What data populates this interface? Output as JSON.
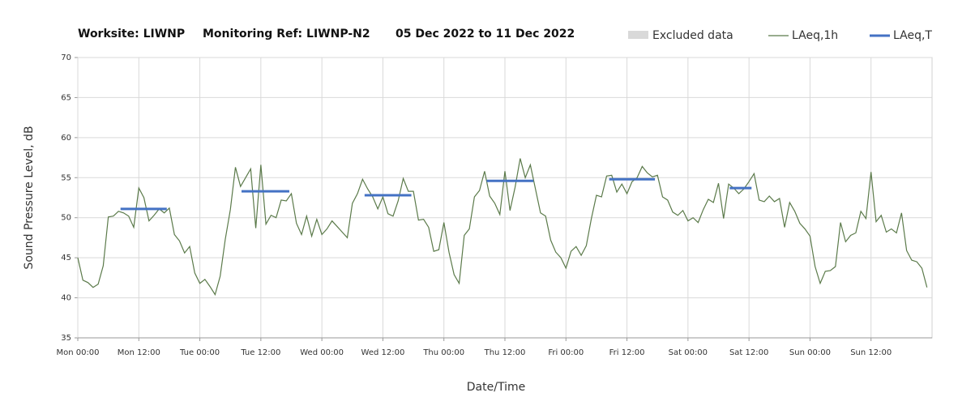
{
  "chart_data": {
    "type": "line",
    "title_parts": [
      "Worksite: LIWNP",
      "Monitoring Ref: LIWNP-N2",
      "05 Dec 2022 to 11 Dec 2022"
    ],
    "xlabel": "Date/Time",
    "ylabel": "Sound Pressure Level, dB",
    "excluded_data": {
      "name": "Excluded data",
      "color": "#d9d9d9"
    },
    "xlim": [
      0,
      168
    ],
    "ylim": [
      35,
      70
    ],
    "grid": true,
    "xticks": [
      {
        "value": 0,
        "label": "Mon 00:00"
      },
      {
        "value": 12,
        "label": "Mon 12:00"
      },
      {
        "value": 24,
        "label": "Tue 00:00"
      },
      {
        "value": 36,
        "label": "Tue 12:00"
      },
      {
        "value": 48,
        "label": "Wed 00:00"
      },
      {
        "value": 60,
        "label": "Wed 12:00"
      },
      {
        "value": 72,
        "label": "Thu 00:00"
      },
      {
        "value": 84,
        "label": "Thu 12:00"
      },
      {
        "value": 96,
        "label": "Fri 00:00"
      },
      {
        "value": 108,
        "label": "Fri 12:00"
      },
      {
        "value": 120,
        "label": "Sat 00:00"
      },
      {
        "value": 132,
        "label": "Sat 12:00"
      },
      {
        "value": 144,
        "label": "Sun 00:00"
      },
      {
        "value": 156,
        "label": "Sun 12:00"
      }
    ],
    "yticks": [
      35,
      40,
      45,
      50,
      55,
      60,
      65,
      70
    ],
    "x": [
      0,
      1,
      2,
      3,
      4,
      5,
      6,
      7,
      8,
      9,
      10,
      11,
      12,
      13,
      14,
      15,
      16,
      17,
      18,
      19,
      20,
      21,
      22,
      23,
      24,
      25,
      26,
      27,
      28,
      29,
      30,
      31,
      32,
      33,
      34,
      35,
      36,
      37,
      38,
      39,
      40,
      41,
      42,
      43,
      44,
      45,
      46,
      47,
      48,
      49,
      50,
      51,
      52,
      53,
      54,
      55,
      56,
      57,
      58,
      59,
      60,
      61,
      62,
      63,
      64,
      65,
      66,
      67,
      68,
      69,
      70,
      71,
      72,
      73,
      74,
      75,
      76,
      77,
      78,
      79,
      80,
      81,
      82,
      83,
      84,
      85,
      86,
      87,
      88,
      89,
      90,
      91,
      92,
      93,
      94,
      95,
      96,
      97,
      98,
      99,
      100,
      101,
      102,
      103,
      104,
      105,
      106,
      107,
      108,
      109,
      110,
      111,
      112,
      113,
      114,
      115,
      116,
      117,
      118,
      119,
      120,
      121,
      122,
      123,
      124,
      125,
      126,
      127,
      128,
      129,
      130,
      131,
      132,
      133,
      134,
      135,
      136,
      137,
      138,
      139,
      140,
      141,
      142,
      143,
      144,
      145,
      146,
      147,
      148,
      149,
      150,
      151,
      152,
      153,
      154,
      155,
      156,
      157,
      158,
      159,
      160,
      161,
      162,
      163,
      164,
      165,
      166,
      167
    ],
    "series": [
      {
        "name": "LAeq,1h",
        "color": "#5b7a4a",
        "values": [
          45,
          42.2,
          41.9,
          41.3,
          41.7,
          44,
          50.1,
          50.2,
          50.8,
          50.6,
          50.2,
          48.8,
          53.7,
          52.5,
          49.6,
          50.3,
          51.1,
          50.6,
          51.2,
          47.9,
          47.1,
          45.6,
          46.4,
          43.1,
          41.8,
          42.3,
          41.4,
          40.4,
          42.7,
          47.3,
          51,
          56.3,
          53.9,
          55,
          56.1,
          48.7,
          56.6,
          49.2,
          50.3,
          50,
          52.2,
          52.1,
          53,
          49.3,
          47.9,
          50.2,
          47.7,
          49.8,
          47.9,
          48.6,
          49.6,
          48.9,
          48.2,
          47.5,
          51.8,
          53,
          54.8,
          53.6,
          52.6,
          51.1,
          52.6,
          50.5,
          50.2,
          52.1,
          54.9,
          53.3,
          53.3,
          49.7,
          49.8,
          48.8,
          45.8,
          46,
          49.4,
          45.7,
          42.9,
          41.8,
          47.8,
          48.6,
          52.6,
          53.4,
          55.8,
          52.7,
          51.8,
          50.4,
          55.8,
          50.9,
          53.8,
          57.4,
          55,
          56.6,
          53.6,
          50.6,
          50.2,
          47.2,
          45.7,
          45,
          43.7,
          45.8,
          46.4,
          45.3,
          46.5,
          49.9,
          52.8,
          52.6,
          55.2,
          55.3,
          53.2,
          54.2,
          53,
          54.5,
          55,
          56.4,
          55.6,
          55.1,
          55.3,
          52.6,
          52.2,
          50.7,
          50.3,
          50.9,
          49.6,
          50,
          49.4,
          51,
          52.3,
          51.9,
          54.3,
          49.9,
          54.2,
          53.7,
          53,
          53.6,
          54.5,
          55.5,
          52.2,
          52,
          52.7,
          52,
          52.4,
          48.8,
          51.9,
          50.8,
          49.3,
          48.6,
          47.7,
          43.9,
          41.8,
          43.3,
          43.4,
          43.9,
          49.4,
          47,
          47.8,
          48.1,
          50.8,
          49.9,
          55.7,
          49.5,
          50.3,
          48.2,
          48.6,
          48.1,
          50.6,
          45.9,
          44.7,
          44.5,
          43.7,
          41.3
        ]
      },
      {
        "name": "LAeq,T",
        "color": "#4472c4",
        "segments": [
          {
            "start": 8.4,
            "end": 17.5,
            "value": 51.1
          },
          {
            "start": 32.2,
            "end": 41.6,
            "value": 53.3
          },
          {
            "start": 56.4,
            "end": 65.6,
            "value": 52.8
          },
          {
            "start": 80.4,
            "end": 89.6,
            "value": 54.6
          },
          {
            "start": 104.5,
            "end": 113.5,
            "value": 54.8
          },
          {
            "start": 128.2,
            "end": 132.5,
            "value": 53.7
          }
        ]
      }
    ]
  }
}
